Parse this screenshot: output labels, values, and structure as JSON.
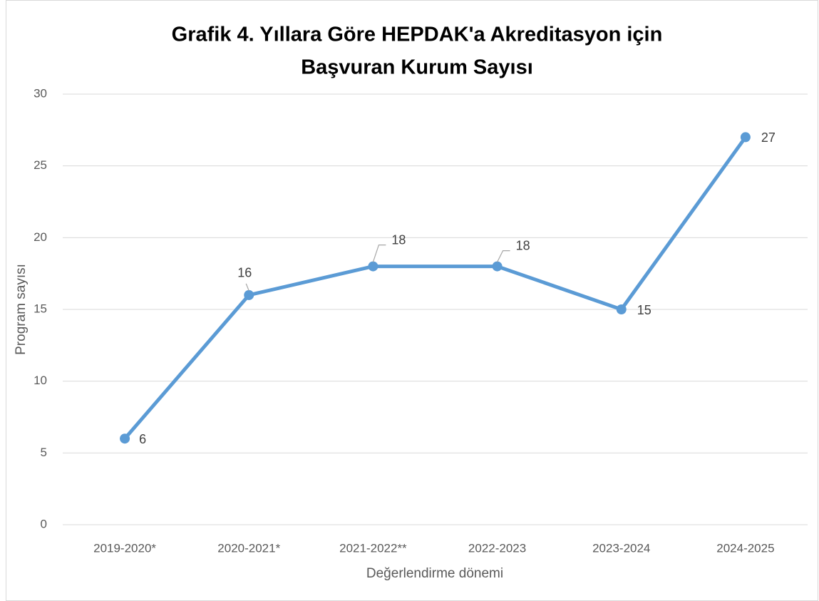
{
  "chart_data": {
    "type": "line",
    "title": [
      "Grafik 4. Yıllara Göre HEPDAK'a   Akreditasyon için",
      "Başvuran Kurum Sayısı"
    ],
    "x_label": "Değerlendirme dönemi",
    "y_label": "Program sayısı",
    "categories": [
      "2019-2020*",
      "2020-2021*",
      "2021-2022**",
      "2022-2023",
      "2023-2024",
      "2024-2025"
    ],
    "series": [
      {
        "name": "Program sayısı",
        "color": "#5b9bd5",
        "values": [
          6,
          16,
          18,
          18,
          15,
          27
        ]
      }
    ],
    "ylim": [
      0,
      30
    ],
    "yticks": [
      0,
      5,
      10,
      15,
      20,
      25,
      30
    ],
    "grid": true
  }
}
